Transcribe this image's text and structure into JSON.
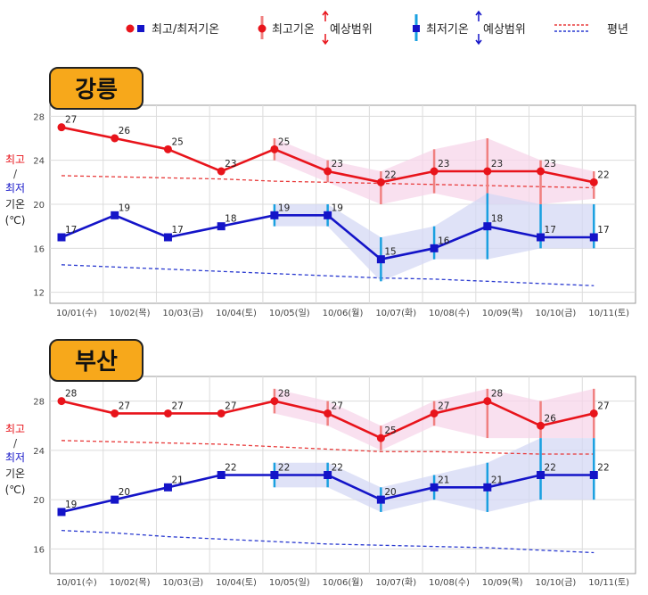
{
  "legend": {
    "item1": "최고/최저기온",
    "item2": "최고기온",
    "item3": "최저기온",
    "range_label": "예상범위",
    "item4": "평년"
  },
  "colors": {
    "high": "#e8141b",
    "low": "#1414c8",
    "high_range": "#f08080",
    "low_range": "#1aa0e0",
    "high_band": "#f7d6ea",
    "low_band": "#d4d8f4",
    "normal_high": "#e83a3a",
    "normal_low": "#2a3ad0",
    "title_bg": "#f7a81b"
  },
  "y_axis_label": {
    "high": "최고",
    "slash": "/",
    "low": "최저",
    "temp": "기온",
    "unit": "(℃)"
  },
  "chart_data": [
    {
      "type": "line",
      "title": "강릉",
      "categories": [
        "10/01(수)",
        "10/02(목)",
        "10/03(금)",
        "10/04(토)",
        "10/05(일)",
        "10/06(월)",
        "10/07(화)",
        "10/08(수)",
        "10/09(목)",
        "10/10(금)",
        "10/11(토)"
      ],
      "yticks": [
        "28",
        "24",
        "20",
        "16",
        "12"
      ],
      "ylim": [
        11,
        29
      ],
      "series": [
        {
          "name": "최고기온",
          "values": [
            27,
            26,
            25,
            23,
            25,
            23,
            22,
            23,
            23,
            23,
            22
          ],
          "labels": [
            "27",
            "26",
            "25",
            "23",
            "25",
            "23",
            "22",
            "23",
            "23",
            "23",
            "22"
          ],
          "range_low": [
            null,
            null,
            null,
            null,
            24,
            22,
            20,
            21,
            20,
            20,
            20.5
          ],
          "range_high": [
            null,
            null,
            null,
            null,
            26,
            24,
            23,
            25,
            26,
            24,
            23
          ]
        },
        {
          "name": "최저기온",
          "values": [
            17,
            19,
            17,
            18,
            19,
            19,
            15,
            16,
            18,
            17,
            17
          ],
          "labels": [
            "17",
            "19",
            "17",
            "18",
            "19",
            "19",
            "15",
            "16",
            "18",
            "17",
            "17"
          ],
          "range_low": [
            null,
            null,
            null,
            null,
            18,
            18,
            13,
            15,
            15,
            16,
            16
          ],
          "range_high": [
            null,
            null,
            null,
            null,
            20,
            20,
            17,
            18,
            21,
            20,
            20
          ]
        },
        {
          "name": "평년 최고",
          "values": [
            22.6,
            22.5,
            22.4,
            22.3,
            22.1,
            22,
            21.9,
            21.8,
            21.7,
            21.6,
            21.5
          ]
        },
        {
          "name": "평년 최저",
          "values": [
            14.5,
            14.3,
            14.1,
            13.9,
            13.7,
            13.5,
            13.3,
            13.2,
            13,
            12.8,
            12.6
          ]
        }
      ]
    },
    {
      "type": "line",
      "title": "부산",
      "categories": [
        "10/01(수)",
        "10/02(목)",
        "10/03(금)",
        "10/04(토)",
        "10/05(일)",
        "10/06(월)",
        "10/07(화)",
        "10/08(수)",
        "10/09(목)",
        "10/10(금)",
        "10/11(토)"
      ],
      "yticks": [
        "28",
        "24",
        "20",
        "16"
      ],
      "ylim": [
        14,
        30
      ],
      "series": [
        {
          "name": "최고기온",
          "values": [
            28,
            27,
            27,
            27,
            28,
            27,
            25,
            27,
            28,
            26,
            27
          ],
          "labels": [
            "28",
            "27",
            "27",
            "27",
            "28",
            "27",
            "25",
            "27",
            "28",
            "26",
            "27"
          ],
          "range_low": [
            null,
            null,
            null,
            null,
            27,
            26,
            24,
            26,
            25,
            25,
            25
          ],
          "range_high": [
            null,
            null,
            null,
            null,
            29,
            28,
            26,
            28,
            29,
            28,
            29
          ]
        },
        {
          "name": "최저기온",
          "values": [
            19,
            20,
            21,
            22,
            22,
            22,
            20,
            21,
            21,
            22,
            22
          ],
          "labels": [
            "19",
            "20",
            "21",
            "22",
            "22",
            "22",
            "20",
            "21",
            "21",
            "22",
            "22"
          ],
          "range_low": [
            null,
            null,
            null,
            null,
            21,
            21,
            19,
            20,
            19,
            20,
            20
          ],
          "range_high": [
            null,
            null,
            null,
            null,
            23,
            23,
            21,
            22,
            23,
            25,
            25
          ]
        },
        {
          "name": "평년 최고",
          "values": [
            24.8,
            24.7,
            24.6,
            24.5,
            24.3,
            24.1,
            23.9,
            23.9,
            23.8,
            23.7,
            23.7
          ]
        },
        {
          "name": "평년 최저",
          "values": [
            17.5,
            17.3,
            17.0,
            16.8,
            16.6,
            16.4,
            16.3,
            16.2,
            16.1,
            15.9,
            15.7
          ]
        }
      ]
    }
  ]
}
